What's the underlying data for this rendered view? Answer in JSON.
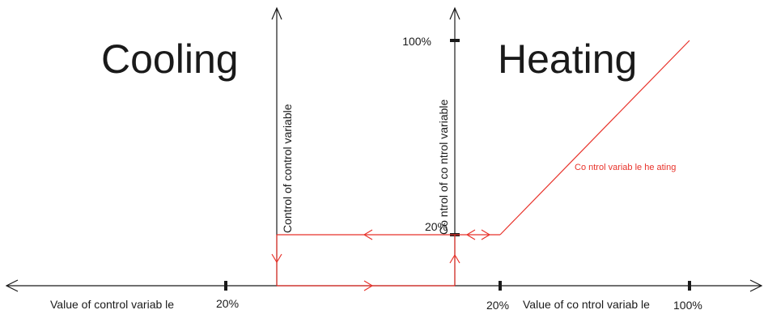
{
  "diagram": {
    "regions": {
      "cooling": "Cooling",
      "heating": "Heating"
    },
    "x_axis": {
      "left_label": "Value of control variab le",
      "left_tick": "20%",
      "right_tick_20": "20%",
      "right_label": "Value of co ntrol variab le",
      "right_tick_100": "100%"
    },
    "y_axis": {
      "left_label": "Control of control variable",
      "right_label": "Co ntrol of co ntrol variable",
      "tick_100": "100%",
      "tick_20": "20%"
    },
    "curve_label": "Co ntrol variab le he ating",
    "colors": {
      "axes": "#1a1a1a",
      "curve": "#e8322a"
    }
  }
}
